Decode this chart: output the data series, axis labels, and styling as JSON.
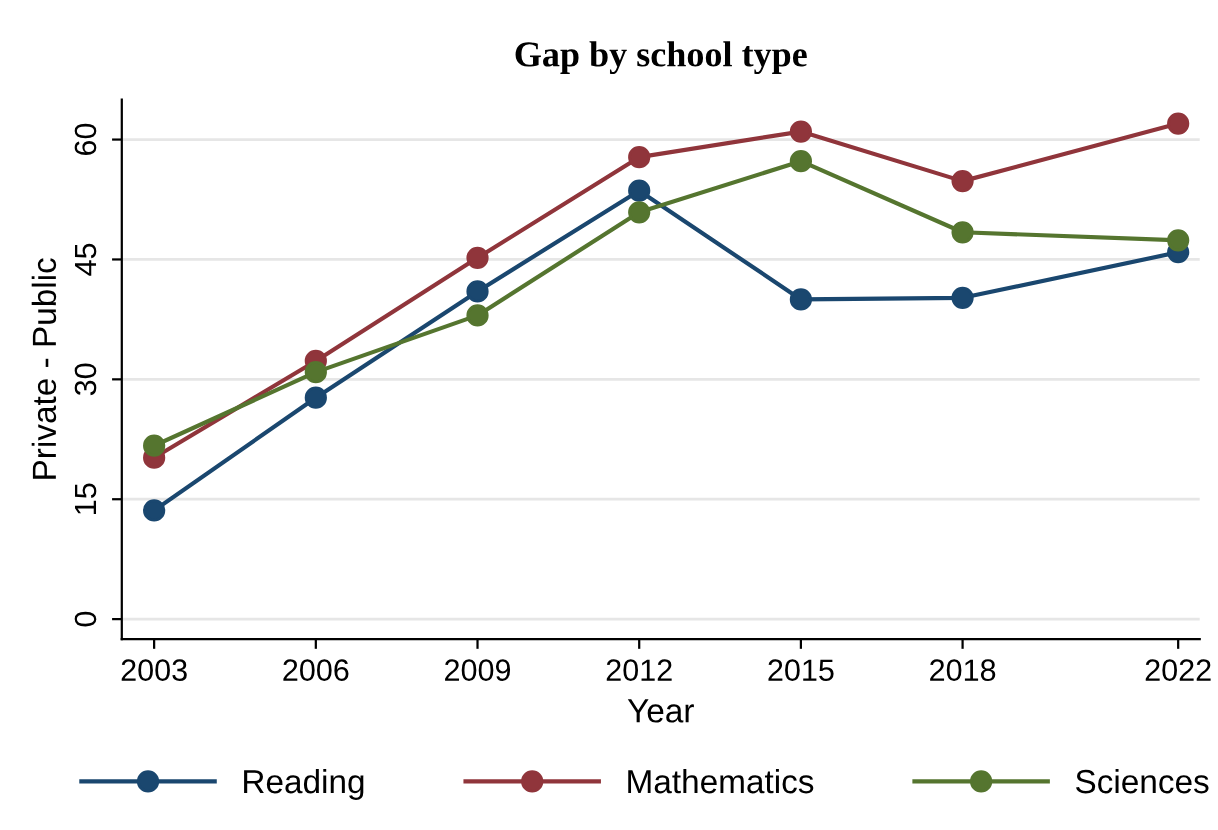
{
  "chart_data": {
    "type": "line",
    "title": "Gap by school type",
    "xlabel": "Year",
    "ylabel": "Private - Public",
    "x": [
      2003,
      2006,
      2009,
      2012,
      2015,
      2018,
      2022
    ],
    "series": [
      {
        "name": "Reading",
        "color": "#1a476f",
        "values": [
          13.6,
          27.7,
          41.0,
          53.6,
          40.0,
          40.2,
          45.9
        ]
      },
      {
        "name": "Mathematics",
        "color": "#90353b",
        "values": [
          20.2,
          32.3,
          45.2,
          57.8,
          61.0,
          54.8,
          62.0
        ]
      },
      {
        "name": "Sciences",
        "color": "#55752f",
        "values": [
          21.7,
          30.9,
          38.0,
          50.9,
          57.3,
          48.4,
          47.4
        ]
      }
    ],
    "xlim": [
      2002.4,
      2022.4
    ],
    "xticks": [
      2003,
      2006,
      2009,
      2012,
      2015,
      2018,
      2022
    ],
    "ylim": [
      -2.5,
      65
    ],
    "yticks": [
      0,
      15,
      30,
      45,
      60
    ],
    "grid": "y",
    "legend": "bottom",
    "marker": "circle",
    "line_style": "solid"
  }
}
